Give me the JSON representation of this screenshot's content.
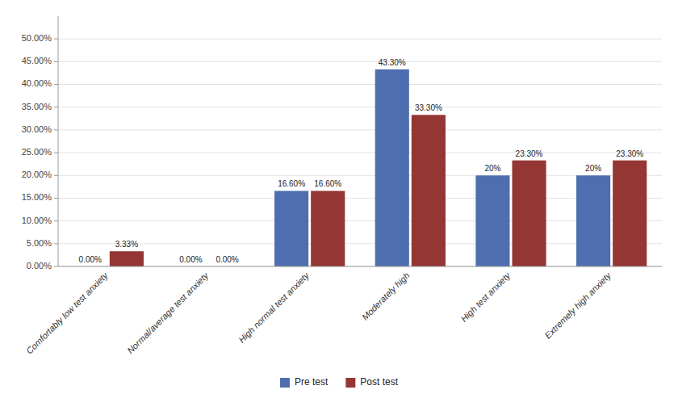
{
  "chart_data": {
    "type": "bar",
    "categories": [
      "Comfortably low test anxiety",
      "Normal/average test anxiety",
      "High normal test anxiety",
      "Moderately high",
      "High test anxiety",
      "Extremely high anxiety"
    ],
    "series": [
      {
        "name": "Pre test",
        "color": "#4F6EAF",
        "values": [
          0.0,
          0.0,
          16.6,
          43.3,
          20.0,
          20.0
        ],
        "value_labels": [
          "0.00%",
          "0.00%",
          "16.60%",
          "43.30%",
          "20%",
          "20%"
        ]
      },
      {
        "name": "Post test",
        "color": "#943634",
        "values": [
          3.33,
          0.0,
          16.6,
          33.3,
          23.3,
          23.3
        ],
        "value_labels": [
          "3.33%",
          "0.00%",
          "16.60%",
          "33.30%",
          "23.30%",
          "23.30%"
        ]
      }
    ],
    "ylim": [
      0,
      55
    ],
    "yticks": [
      {
        "value": 0,
        "label": "0.00%"
      },
      {
        "value": 5,
        "label": "5.00%"
      },
      {
        "value": 10,
        "label": "10.00%"
      },
      {
        "value": 15,
        "label": "15.00%"
      },
      {
        "value": 20,
        "label": "20.00%"
      },
      {
        "value": 25,
        "label": "25.00%"
      },
      {
        "value": 30,
        "label": "30.00%"
      },
      {
        "value": 35,
        "label": "35.00%"
      },
      {
        "value": 40,
        "label": "40.00%"
      },
      {
        "value": 45,
        "label": "45.00%"
      },
      {
        "value": 50,
        "label": "50.00%"
      }
    ],
    "grid": true,
    "data_labels": true,
    "legend": "bottom"
  }
}
